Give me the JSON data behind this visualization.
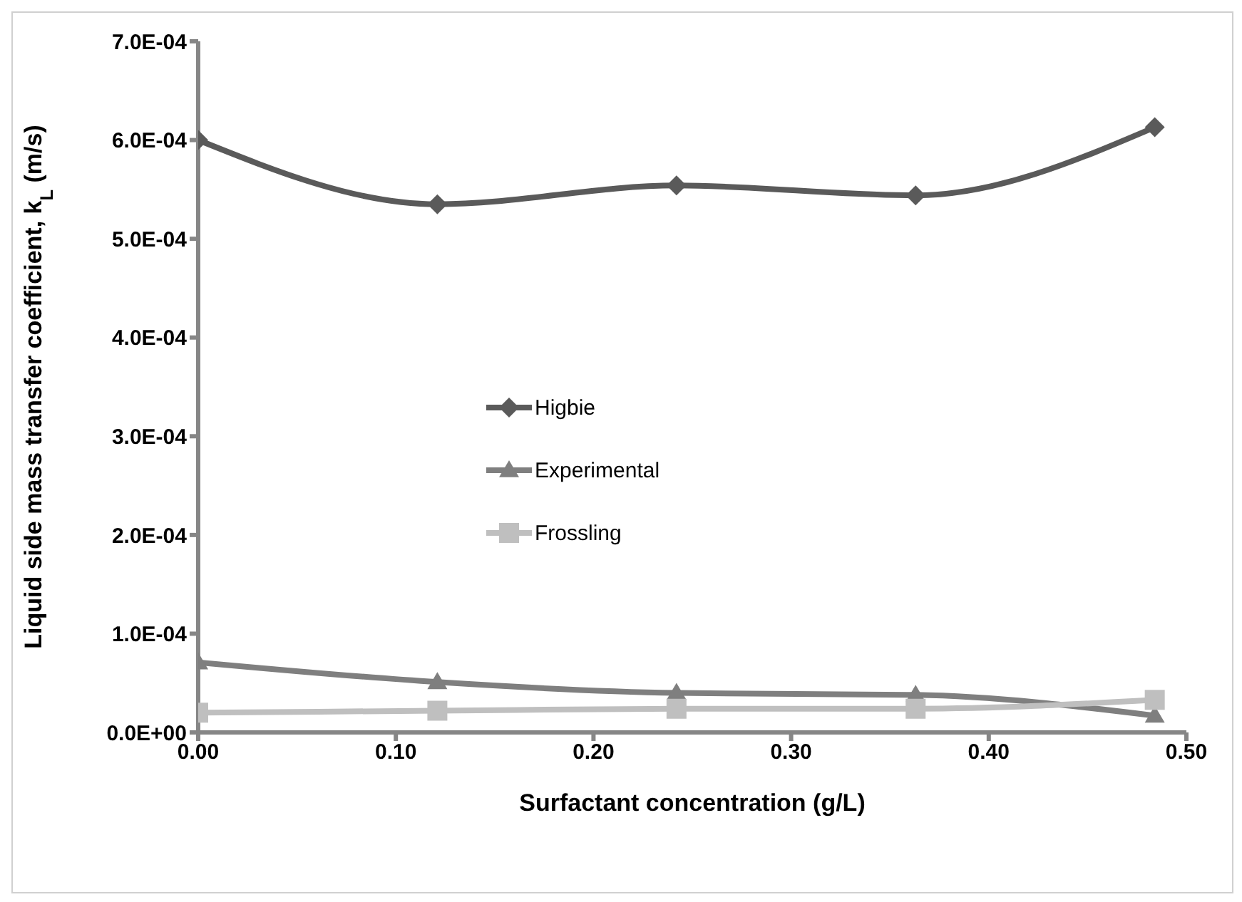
{
  "chart_data": {
    "type": "line",
    "xlabel": "Surfactant concentration (g/L)",
    "ylabel": "Liquid side mass transfer coefficient, k$_{L}$ (m/s)",
    "x": [
      0,
      0.121,
      0.242,
      0.363,
      0.484
    ],
    "series": [
      {
        "name": "Higbie",
        "color": "#5a5a5a",
        "marker": "diamond",
        "values": [
          0.0006,
          0.000535,
          0.000554,
          0.000544,
          0.000613
        ]
      },
      {
        "name": "Experimental",
        "color": "#7f7f7f",
        "marker": "triangle",
        "values": [
          7.1e-05,
          5.1e-05,
          4e-05,
          3.8e-05,
          1.7e-05
        ]
      },
      {
        "name": "Frossling",
        "color": "#bfbfbf",
        "marker": "square",
        "values": [
          2e-05,
          2.2e-05,
          2.4e-05,
          2.4e-05,
          3.3e-05
        ]
      }
    ],
    "xlim": [
      0,
      0.5
    ],
    "xticks": [
      {
        "value": 0,
        "label": "0.00"
      },
      {
        "value": 0.1,
        "label": "0.10"
      },
      {
        "value": 0.2,
        "label": "0.20"
      },
      {
        "value": 0.3,
        "label": "0.30"
      },
      {
        "value": 0.4,
        "label": "0.40"
      },
      {
        "value": 0.5,
        "label": "0.50"
      }
    ],
    "ylim": [
      0,
      0.0007
    ],
    "yticks": [
      {
        "value": 0,
        "label": "0.0E+00"
      },
      {
        "value": 0.0001,
        "label": "1.0E-04"
      },
      {
        "value": 0.0002,
        "label": "2.0E-04"
      },
      {
        "value": 0.0003,
        "label": "3.0E-04"
      },
      {
        "value": 0.0004,
        "label": "4.0E-04"
      },
      {
        "value": 0.0005,
        "label": "5.0E-04"
      },
      {
        "value": 0.0006,
        "label": "6.0E-04"
      },
      {
        "value": 0.0007,
        "label": "7.0E-04"
      }
    ],
    "grid": false,
    "legend": "center",
    "line_style": "solid"
  }
}
